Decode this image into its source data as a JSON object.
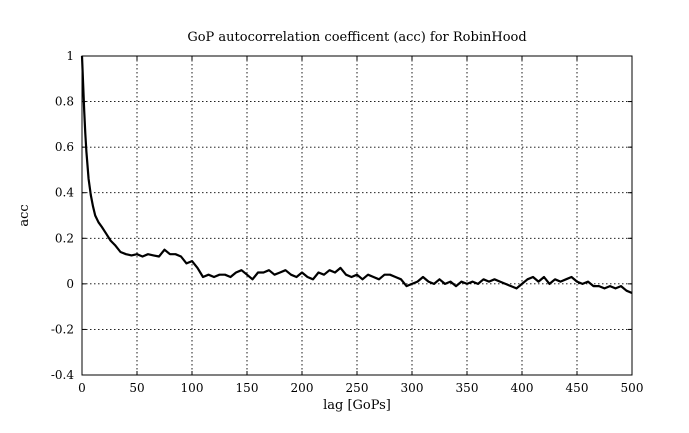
{
  "chart_data": {
    "type": "line",
    "title": "GoP autocorrelation coefficent (acc) for RobinHood",
    "xlabel": "lag [GoPs]",
    "ylabel": "acc",
    "xlim": [
      0,
      500
    ],
    "ylim": [
      -0.4,
      1
    ],
    "xticks": [
      0,
      50,
      100,
      150,
      200,
      250,
      300,
      350,
      400,
      450,
      500
    ],
    "yticks": [
      -0.4,
      -0.2,
      0,
      0.2,
      0.4,
      0.6,
      0.8,
      1
    ],
    "ytick_labels": [
      "-0.4",
      "-0.2",
      "0",
      "0.2",
      "0.4",
      "0.6",
      "0.8",
      "1"
    ],
    "xtick_labels": [
      "0",
      "50",
      "100",
      "150",
      "200",
      "250",
      "300",
      "350",
      "400",
      "450",
      "500"
    ],
    "grid": true,
    "legend": "none",
    "series": [
      {
        "x": [
          0,
          1,
          2,
          3,
          4,
          5,
          6,
          8,
          10,
          12,
          15,
          18,
          22,
          26,
          30,
          35,
          40,
          45,
          50,
          55,
          60,
          65,
          70,
          75,
          80,
          85,
          90,
          95,
          100,
          105,
          110,
          115,
          120,
          125,
          130,
          135,
          140,
          145,
          150,
          155,
          160,
          165,
          170,
          175,
          180,
          185,
          190,
          195,
          200,
          205,
          210,
          215,
          220,
          225,
          230,
          235,
          240,
          245,
          250,
          255,
          260,
          265,
          270,
          275,
          280,
          285,
          290,
          295,
          300,
          305,
          310,
          315,
          320,
          325,
          330,
          335,
          340,
          345,
          350,
          355,
          360,
          365,
          370,
          375,
          380,
          385,
          390,
          395,
          400,
          405,
          410,
          415,
          420,
          425,
          430,
          435,
          440,
          445,
          450,
          455,
          460,
          465,
          470,
          475,
          480,
          485,
          490,
          495,
          500
        ],
        "values": [
          1.0,
          0.88,
          0.76,
          0.66,
          0.58,
          0.52,
          0.46,
          0.39,
          0.34,
          0.3,
          0.27,
          0.25,
          0.22,
          0.19,
          0.17,
          0.14,
          0.13,
          0.125,
          0.13,
          0.12,
          0.13,
          0.125,
          0.12,
          0.15,
          0.13,
          0.13,
          0.12,
          0.09,
          0.1,
          0.07,
          0.03,
          0.04,
          0.03,
          0.04,
          0.04,
          0.03,
          0.05,
          0.06,
          0.04,
          0.02,
          0.05,
          0.05,
          0.06,
          0.04,
          0.05,
          0.06,
          0.04,
          0.03,
          0.05,
          0.03,
          0.02,
          0.05,
          0.04,
          0.06,
          0.05,
          0.07,
          0.04,
          0.03,
          0.04,
          0.02,
          0.04,
          0.03,
          0.02,
          0.04,
          0.04,
          0.03,
          0.02,
          -0.01,
          0.0,
          0.01,
          0.03,
          0.01,
          0.0,
          0.02,
          0.0,
          0.01,
          -0.01,
          0.01,
          0.0,
          0.01,
          0.0,
          0.02,
          0.01,
          0.02,
          0.01,
          0.0,
          -0.01,
          -0.02,
          0.0,
          0.02,
          0.03,
          0.01,
          0.03,
          0.0,
          0.02,
          0.01,
          0.02,
          0.03,
          0.01,
          0.0,
          0.01,
          -0.01,
          -0.01,
          -0.02,
          -0.01,
          -0.02,
          -0.01,
          -0.03,
          -0.04
        ]
      }
    ]
  }
}
